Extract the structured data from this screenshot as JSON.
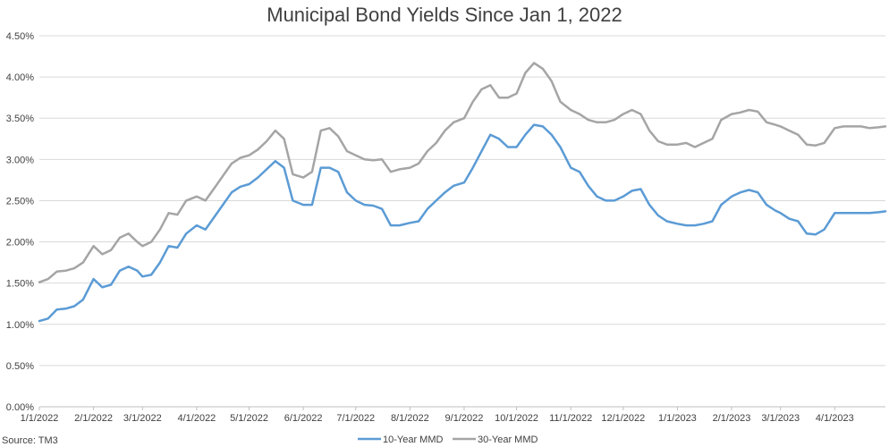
{
  "chart_data": {
    "type": "line",
    "title": "Municipal Bond Yields Since Jan 1, 2022",
    "xlabel": "",
    "ylabel": "",
    "source": "Source: TM3",
    "ylim": [
      0,
      4.5
    ],
    "y_ticks": [
      "0.00%",
      "0.50%",
      "1.00%",
      "1.50%",
      "2.00%",
      "2.50%",
      "3.00%",
      "3.50%",
      "4.00%",
      "4.50%"
    ],
    "x_ticks": [
      "1/1/2022",
      "2/1/2022",
      "3/1/2022",
      "4/1/2022",
      "5/1/2022",
      "6/1/2022",
      "7/1/2022",
      "8/1/2022",
      "9/1/2022",
      "10/1/2022",
      "11/1/2022",
      "12/1/2022",
      "1/1/2023",
      "2/1/2023",
      "3/1/2023",
      "4/1/2023"
    ],
    "grid": true,
    "legend_position": "bottom",
    "x": [
      "1/1/2022",
      "1/6/2022",
      "1/11/2022",
      "1/16/2022",
      "1/21/2022",
      "1/26/2022",
      "2/1/2022",
      "2/6/2022",
      "2/11/2022",
      "2/16/2022",
      "2/21/2022",
      "2/26/2022",
      "3/1/2022",
      "3/6/2022",
      "3/11/2022",
      "3/16/2022",
      "3/21/2022",
      "3/26/2022",
      "4/1/2022",
      "4/6/2022",
      "4/11/2022",
      "4/16/2022",
      "4/21/2022",
      "4/26/2022",
      "5/1/2022",
      "5/6/2022",
      "5/11/2022",
      "5/16/2022",
      "5/21/2022",
      "5/26/2022",
      "6/1/2022",
      "6/6/2022",
      "6/11/2022",
      "6/16/2022",
      "6/21/2022",
      "6/26/2022",
      "7/1/2022",
      "7/6/2022",
      "7/11/2022",
      "7/16/2022",
      "7/21/2022",
      "7/26/2022",
      "8/1/2022",
      "8/6/2022",
      "8/11/2022",
      "8/16/2022",
      "8/21/2022",
      "8/26/2022",
      "9/1/2022",
      "9/6/2022",
      "9/11/2022",
      "9/16/2022",
      "9/21/2022",
      "9/26/2022",
      "10/1/2022",
      "10/6/2022",
      "10/11/2022",
      "10/16/2022",
      "10/21/2022",
      "10/26/2022",
      "11/1/2022",
      "11/6/2022",
      "11/11/2022",
      "11/16/2022",
      "11/21/2022",
      "11/26/2022",
      "12/1/2022",
      "12/6/2022",
      "12/11/2022",
      "12/16/2022",
      "12/21/2022",
      "12/26/2022",
      "1/1/2023",
      "1/6/2023",
      "1/11/2023",
      "1/16/2023",
      "1/21/2023",
      "1/26/2023",
      "2/1/2023",
      "2/6/2023",
      "2/11/2023",
      "2/16/2023",
      "2/21/2023",
      "2/26/2023",
      "3/1/2023",
      "3/6/2023",
      "3/11/2023",
      "3/16/2023",
      "3/21/2023",
      "3/26/2023",
      "4/1/2023",
      "4/6/2023",
      "4/11/2023",
      "4/16/2023",
      "4/21/2023",
      "4/26/2023",
      "4/30/2023"
    ],
    "series": [
      {
        "name": "10-Year MMD",
        "color": "#5b9bd5",
        "values": [
          1.04,
          1.07,
          1.18,
          1.19,
          1.22,
          1.3,
          1.55,
          1.45,
          1.48,
          1.65,
          1.7,
          1.65,
          1.58,
          1.6,
          1.75,
          1.95,
          1.93,
          2.1,
          2.2,
          2.15,
          2.3,
          2.45,
          2.6,
          2.67,
          2.7,
          2.78,
          2.88,
          2.98,
          2.9,
          2.5,
          2.45,
          2.45,
          2.9,
          2.9,
          2.85,
          2.6,
          2.5,
          2.45,
          2.44,
          2.4,
          2.2,
          2.2,
          2.23,
          2.25,
          2.4,
          2.5,
          2.6,
          2.68,
          2.72,
          2.9,
          3.1,
          3.3,
          3.25,
          3.15,
          3.15,
          3.3,
          3.42,
          3.4,
          3.3,
          3.15,
          2.9,
          2.85,
          2.68,
          2.55,
          2.5,
          2.5,
          2.55,
          2.62,
          2.64,
          2.45,
          2.32,
          2.25,
          2.22,
          2.2,
          2.2,
          2.22,
          2.25,
          2.45,
          2.55,
          2.6,
          2.63,
          2.6,
          2.45,
          2.38,
          2.35,
          2.28,
          2.25,
          2.1,
          2.09,
          2.15,
          2.35,
          2.35,
          2.35,
          2.35,
          2.35,
          2.36,
          2.37
        ]
      },
      {
        "name": "30-Year MMD",
        "color": "#a5a5a5",
        "values": [
          1.51,
          1.55,
          1.64,
          1.65,
          1.68,
          1.75,
          1.95,
          1.85,
          1.9,
          2.05,
          2.1,
          2.0,
          1.95,
          2.0,
          2.15,
          2.35,
          2.33,
          2.5,
          2.55,
          2.5,
          2.65,
          2.8,
          2.95,
          3.02,
          3.05,
          3.12,
          3.22,
          3.35,
          3.25,
          2.82,
          2.78,
          2.85,
          3.35,
          3.38,
          3.28,
          3.1,
          3.05,
          3.0,
          2.99,
          3.0,
          2.85,
          2.88,
          2.9,
          2.95,
          3.1,
          3.2,
          3.35,
          3.45,
          3.5,
          3.7,
          3.85,
          3.9,
          3.75,
          3.75,
          3.8,
          4.05,
          4.17,
          4.1,
          3.95,
          3.7,
          3.6,
          3.55,
          3.48,
          3.45,
          3.45,
          3.48,
          3.55,
          3.6,
          3.55,
          3.35,
          3.22,
          3.18,
          3.18,
          3.2,
          3.15,
          3.2,
          3.25,
          3.48,
          3.55,
          3.57,
          3.6,
          3.58,
          3.45,
          3.42,
          3.4,
          3.35,
          3.3,
          3.18,
          3.17,
          3.2,
          3.38,
          3.4,
          3.4,
          3.4,
          3.38,
          3.39,
          3.4
        ]
      }
    ]
  }
}
